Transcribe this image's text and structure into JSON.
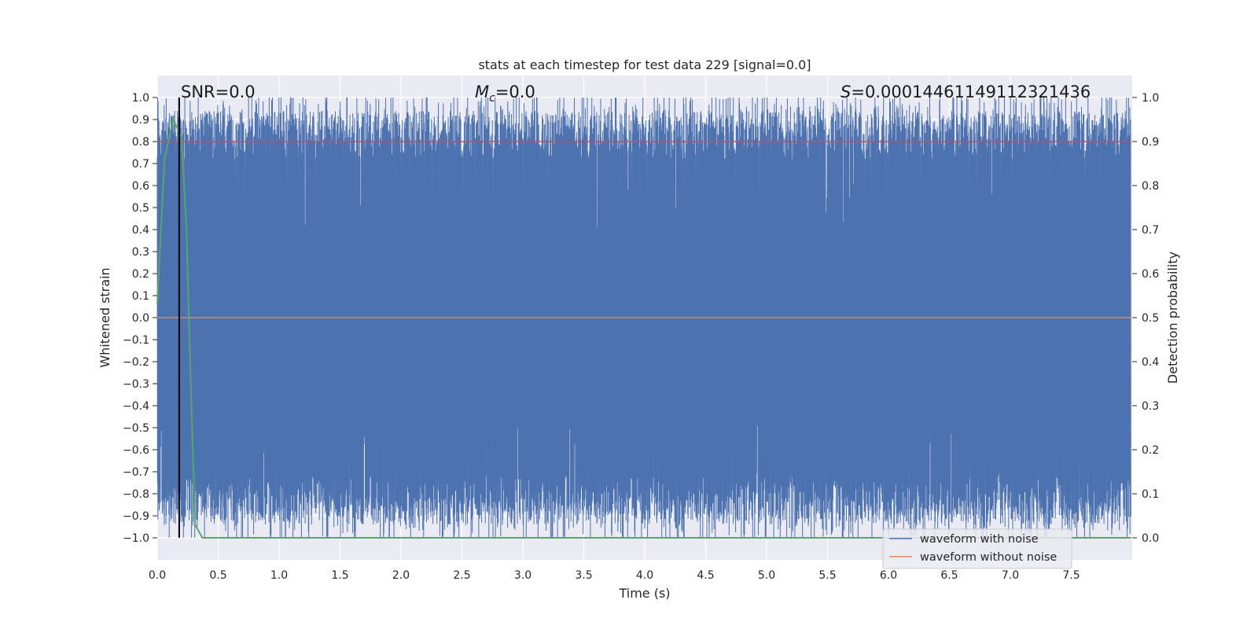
{
  "chart_data": {
    "type": "line",
    "title": "stats at each timestep for test data 229 [signal=0.0]",
    "xlabel": "Time (s)",
    "ylabel": "Whitened strain",
    "y2label": "Detection probability",
    "xlim": [
      0.0,
      8.0
    ],
    "ylim": [
      -1.1,
      1.1
    ],
    "y2lim": [
      -0.05,
      1.05
    ],
    "x_ticks": [
      "0.0",
      "0.5",
      "1.0",
      "1.5",
      "2.0",
      "2.5",
      "3.0",
      "3.5",
      "4.0",
      "4.5",
      "5.0",
      "5.5",
      "6.0",
      "6.5",
      "7.0",
      "7.5"
    ],
    "y_ticks": [
      "1.0",
      "0.9",
      "0.8",
      "0.7",
      "0.6",
      "0.5",
      "0.4",
      "0.3",
      "0.2",
      "0.1",
      "0.0",
      "−0.1",
      "−0.2",
      "−0.3",
      "−0.4",
      "−0.5",
      "−0.6",
      "−0.7",
      "−0.8",
      "−0.9",
      "−1.0"
    ],
    "y2_ticks": [
      "1.0",
      "0.9",
      "0.8",
      "0.7",
      "0.6",
      "0.5",
      "0.4",
      "0.3",
      "0.2",
      "0.1",
      "0.0"
    ],
    "grid": true,
    "legend_position": "lower-right",
    "series": [
      {
        "name": "waveform with noise",
        "axis": "left",
        "color": "#4c72b0",
        "description_range": [
          -1.0,
          1.0
        ],
        "typical_envelope": {
          "upper": 0.8,
          "lower": -0.8
        }
      },
      {
        "name": "waveform without noise",
        "axis": "left",
        "color": "#dd8452",
        "constant_value": 0.0
      },
      {
        "axis": "right",
        "color": "#55a868",
        "x": [
          0.0,
          0.06,
          0.13,
          0.2,
          0.24,
          0.27,
          0.31,
          0.37,
          0.5,
          8.0
        ],
        "y": [
          0.53,
          0.86,
          0.95,
          0.91,
          0.7,
          0.4,
          0.03,
          0.0,
          0.0,
          0.0
        ]
      },
      {
        "axis": "left",
        "color": "#c44e52",
        "constant_value": 0.8
      }
    ],
    "vertical_line": {
      "x": 0.18,
      "color": "#000000"
    },
    "annotations": {
      "snr": "SNR=0.0",
      "mc_symbol": "M",
      "mc_sub": "c",
      "mc_value": "=0.0",
      "s_symbol": "S",
      "s_value": "=0.0001446114911232143​6"
    }
  }
}
